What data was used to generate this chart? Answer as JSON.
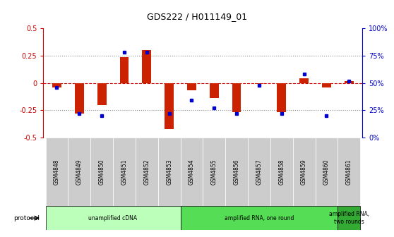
{
  "title": "GDS222 / H011149_01",
  "samples": [
    "GSM4848",
    "GSM4849",
    "GSM4850",
    "GSM4851",
    "GSM4852",
    "GSM4853",
    "GSM4854",
    "GSM4855",
    "GSM4856",
    "GSM4857",
    "GSM4858",
    "GSM4859",
    "GSM4860",
    "GSM4861"
  ],
  "log_ratio": [
    -0.04,
    -0.28,
    -0.2,
    0.24,
    0.3,
    -0.42,
    -0.07,
    -0.14,
    -0.27,
    -0.01,
    -0.27,
    0.04,
    -0.04,
    0.02
  ],
  "percentile": [
    46,
    22,
    20,
    78,
    78,
    22,
    34,
    27,
    22,
    48,
    22,
    58,
    20,
    52
  ],
  "proto_defs": [
    {
      "start": 0,
      "end": 5,
      "color": "#bbffbb",
      "label": "unamplified cDNA"
    },
    {
      "start": 6,
      "end": 12,
      "color": "#55dd55",
      "label": "amplified RNA, one round"
    },
    {
      "start": 13,
      "end": 13,
      "color": "#33aa33",
      "label": "amplified RNA,\ntwo rounds"
    }
  ],
  "bar_color": "#cc2200",
  "dot_color": "#0000cc",
  "yticks_left": [
    -0.5,
    -0.25,
    0,
    0.25,
    0.5
  ],
  "ytick_labels_left": [
    "-0.5",
    "-0.25",
    "0",
    "0.25",
    "0.5"
  ],
  "yticks_right": [
    0,
    25,
    50,
    75,
    100
  ],
  "ytick_labels_right": [
    "0%",
    "25%",
    "50%",
    "75%",
    "100%"
  ],
  "left_axis_color": "#cc0000",
  "right_axis_color": "#0000cc",
  "hline_zero_color": "#cc0000",
  "hline_dotted_color": "#888888",
  "cell_bg": "#cccccc",
  "bar_width": 0.4
}
